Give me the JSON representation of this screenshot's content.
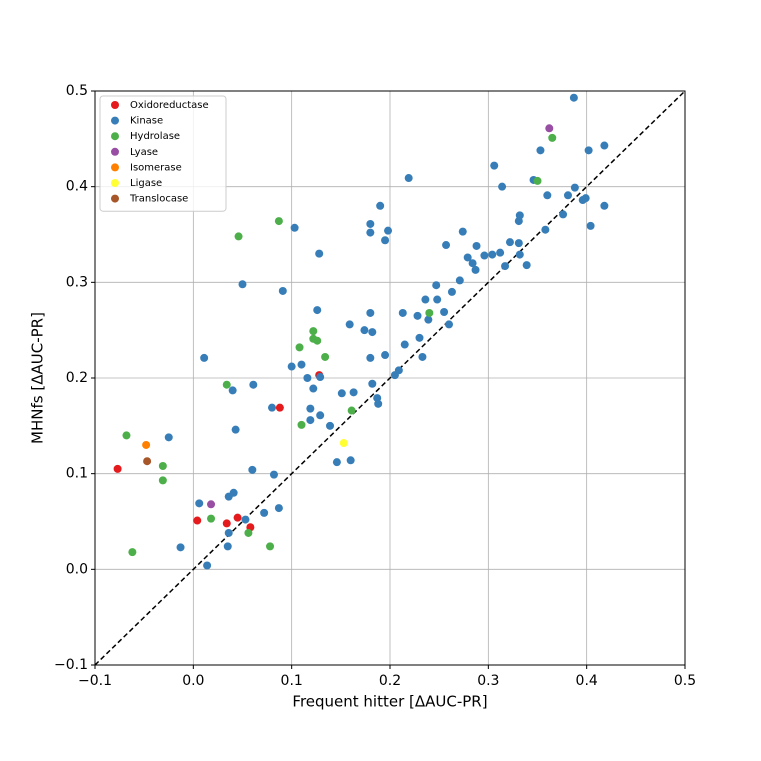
{
  "chart_data": {
    "type": "scatter",
    "xlabel": "Frequent hitter [ΔAUC-PR]",
    "ylabel": "MHNfs [ΔAUC-PR]",
    "xlim": [
      -0.1,
      0.5
    ],
    "ylim": [
      -0.1,
      0.5
    ],
    "xticks": [
      {
        "value": -0.1,
        "label": "−0.1"
      },
      {
        "value": 0,
        "label": "0.0"
      },
      0.1,
      0.2,
      0.3,
      0.4,
      0.5
    ],
    "yticks": [
      {
        "value": -0.1,
        "label": "−0.1"
      },
      {
        "value": 0,
        "label": "0.0"
      },
      0.1,
      0.2,
      0.3,
      0.4,
      0.5
    ],
    "grid": true,
    "legend": "upper left",
    "series": [
      {
        "name": "Oxidoreductase",
        "color": "#e41a1c",
        "x": [
          -0.077,
          0.004,
          0.034,
          0.045,
          0.058,
          0.088,
          0.128
        ],
        "values": [
          0.105,
          0.051,
          0.048,
          0.054,
          0.044,
          0.169,
          0.203
        ]
      },
      {
        "name": "Kinase",
        "color": "#377eb8",
        "x": [
          0.387,
          0.418,
          0.402,
          0.388,
          0.381,
          0.399,
          0.36,
          0.346,
          0.353,
          0.306,
          0.314,
          0.219,
          0.19,
          0.18,
          0.18,
          0.198,
          0.195,
          0.103,
          0.05,
          0.011,
          0.128,
          0.091,
          0.257,
          0.213,
          0.228,
          0.247,
          0.248,
          0.263,
          0.255,
          0.26,
          0.23,
          0.215,
          0.233,
          0.209,
          0.205,
          0.195,
          0.18,
          0.159,
          0.174,
          0.182,
          0.18,
          0.182,
          0.163,
          0.151,
          0.187,
          0.188,
          0.139,
          0.129,
          0.119,
          0.119,
          0.122,
          0.129,
          0.116,
          0.126,
          0.11,
          0.1,
          0.061,
          0.04,
          0.043,
          0.06,
          0.08,
          -0.025,
          0.006,
          0.014,
          -0.013,
          0.036,
          0.041,
          0.053,
          0.035,
          0.036,
          0.072,
          0.087,
          0.082,
          0.16,
          0.146,
          0.274,
          0.304,
          0.322,
          0.296,
          0.279,
          0.284,
          0.287,
          0.317,
          0.332,
          0.331,
          0.339,
          0.358,
          0.376,
          0.418,
          0.404,
          0.396,
          0.312,
          0.271,
          0.239,
          0.236,
          0.332,
          0.331,
          0.288
        ],
        "values": [
          0.493,
          0.443,
          0.438,
          0.399,
          0.391,
          0.388,
          0.391,
          0.407,
          0.438,
          0.422,
          0.4,
          0.409,
          0.38,
          0.361,
          0.352,
          0.354,
          0.344,
          0.357,
          0.298,
          0.221,
          0.33,
          0.291,
          0.339,
          0.268,
          0.265,
          0.297,
          0.282,
          0.29,
          0.269,
          0.256,
          0.242,
          0.235,
          0.222,
          0.208,
          0.203,
          0.224,
          0.268,
          0.256,
          0.25,
          0.248,
          0.221,
          0.194,
          0.185,
          0.184,
          0.179,
          0.173,
          0.15,
          0.161,
          0.156,
          0.168,
          0.189,
          0.201,
          0.2,
          0.271,
          0.214,
          0.212,
          0.193,
          0.187,
          0.146,
          0.104,
          0.169,
          0.138,
          0.069,
          0.004,
          0.023,
          0.076,
          0.08,
          0.052,
          0.024,
          0.038,
          0.059,
          0.064,
          0.099,
          0.114,
          0.112,
          0.353,
          0.329,
          0.342,
          0.328,
          0.326,
          0.32,
          0.313,
          0.317,
          0.329,
          0.341,
          0.318,
          0.355,
          0.371,
          0.38,
          0.359,
          0.386,
          0.331,
          0.302,
          0.261,
          0.282,
          0.37,
          0.364,
          0.338
        ]
      },
      {
        "name": "Hydrolase",
        "color": "#4daf4a",
        "x": [
          0.087,
          0.046,
          -0.068,
          -0.031,
          -0.031,
          -0.062,
          0.034,
          0.018,
          0.056,
          0.078,
          0.108,
          0.11,
          0.122,
          0.126,
          0.122,
          0.134,
          0.161,
          0.24,
          0.35,
          0.365
        ],
        "values": [
          0.364,
          0.348,
          0.14,
          0.108,
          0.093,
          0.018,
          0.193,
          0.053,
          0.038,
          0.024,
          0.232,
          0.151,
          0.249,
          0.239,
          0.241,
          0.222,
          0.166,
          0.268,
          0.406,
          0.451
        ]
      },
      {
        "name": "Lyase",
        "color": "#984ea3",
        "x": [
          0.018,
          0.362
        ],
        "values": [
          0.068,
          0.461
        ]
      },
      {
        "name": "Isomerase",
        "color": "#ff7f00",
        "x": [
          -0.048
        ],
        "values": [
          0.13
        ]
      },
      {
        "name": "Ligase",
        "color": "#ffff33",
        "x": [
          0.153
        ],
        "values": [
          0.132
        ]
      },
      {
        "name": "Translocase",
        "color": "#a65628",
        "x": [
          -0.047
        ],
        "values": [
          0.113
        ]
      }
    ]
  }
}
